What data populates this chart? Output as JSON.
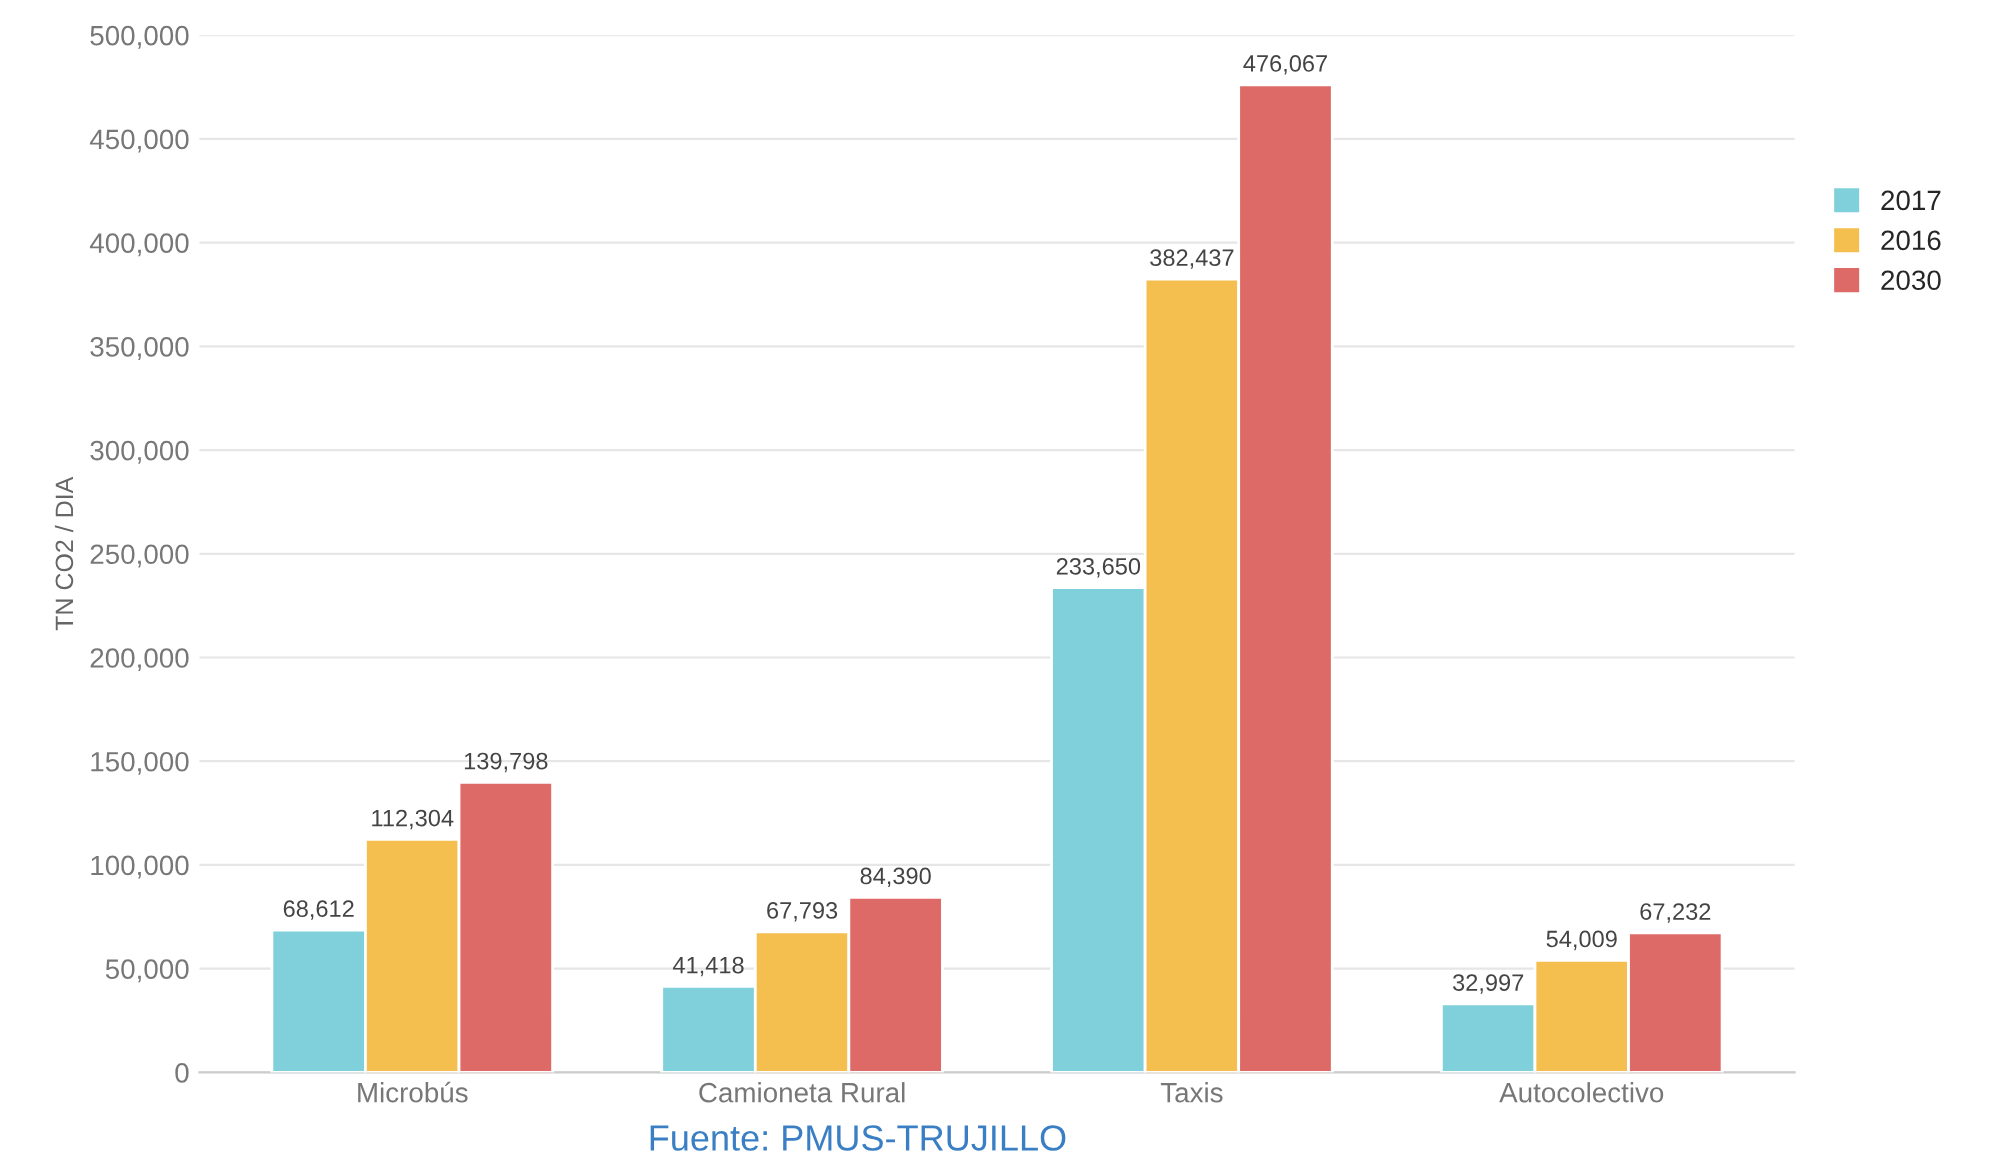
{
  "chart_data": {
    "type": "bar",
    "ylabel": "TN CO2 / DIA",
    "categories": [
      "Microbús",
      "Camioneta Rural",
      "Taxis",
      "Autocolectivo"
    ],
    "series": [
      {
        "name": "2017",
        "color": "#7fd0da",
        "values": [
          68612,
          41418,
          233650,
          32997
        ],
        "value_labels": [
          "68,612",
          "41,418",
          "233,650",
          "32,997"
        ]
      },
      {
        "name": "2016",
        "color": "#f4bf4f",
        "values": [
          112304,
          67793,
          382437,
          54009
        ],
        "value_labels": [
          "112,304",
          "67,793",
          "382,437",
          "54,009"
        ]
      },
      {
        "name": "2030",
        "color": "#dd6a66",
        "values": [
          139798,
          84390,
          476067,
          67232
        ],
        "value_labels": [
          "139,798",
          "84,390",
          "476,067",
          "67,232"
        ]
      }
    ],
    "ylim": [
      0,
      500000
    ],
    "yticks": [
      {
        "value": 0,
        "label": "0"
      },
      {
        "value": 50000,
        "label": "50,000"
      },
      {
        "value": 100000,
        "label": "100,000"
      },
      {
        "value": 150000,
        "label": "150,000"
      },
      {
        "value": 200000,
        "label": "200,000"
      },
      {
        "value": 250000,
        "label": "250,000"
      },
      {
        "value": 300000,
        "label": "300,000"
      },
      {
        "value": 350000,
        "label": "350,000"
      },
      {
        "value": 400000,
        "label": "400,000"
      },
      {
        "value": 450000,
        "label": "450,000"
      },
      {
        "value": 500000,
        "label": "500,000"
      }
    ],
    "grid": "y",
    "legend": "right",
    "annotations": [
      "Fuente: PMUS-TRUJILLO"
    ]
  }
}
